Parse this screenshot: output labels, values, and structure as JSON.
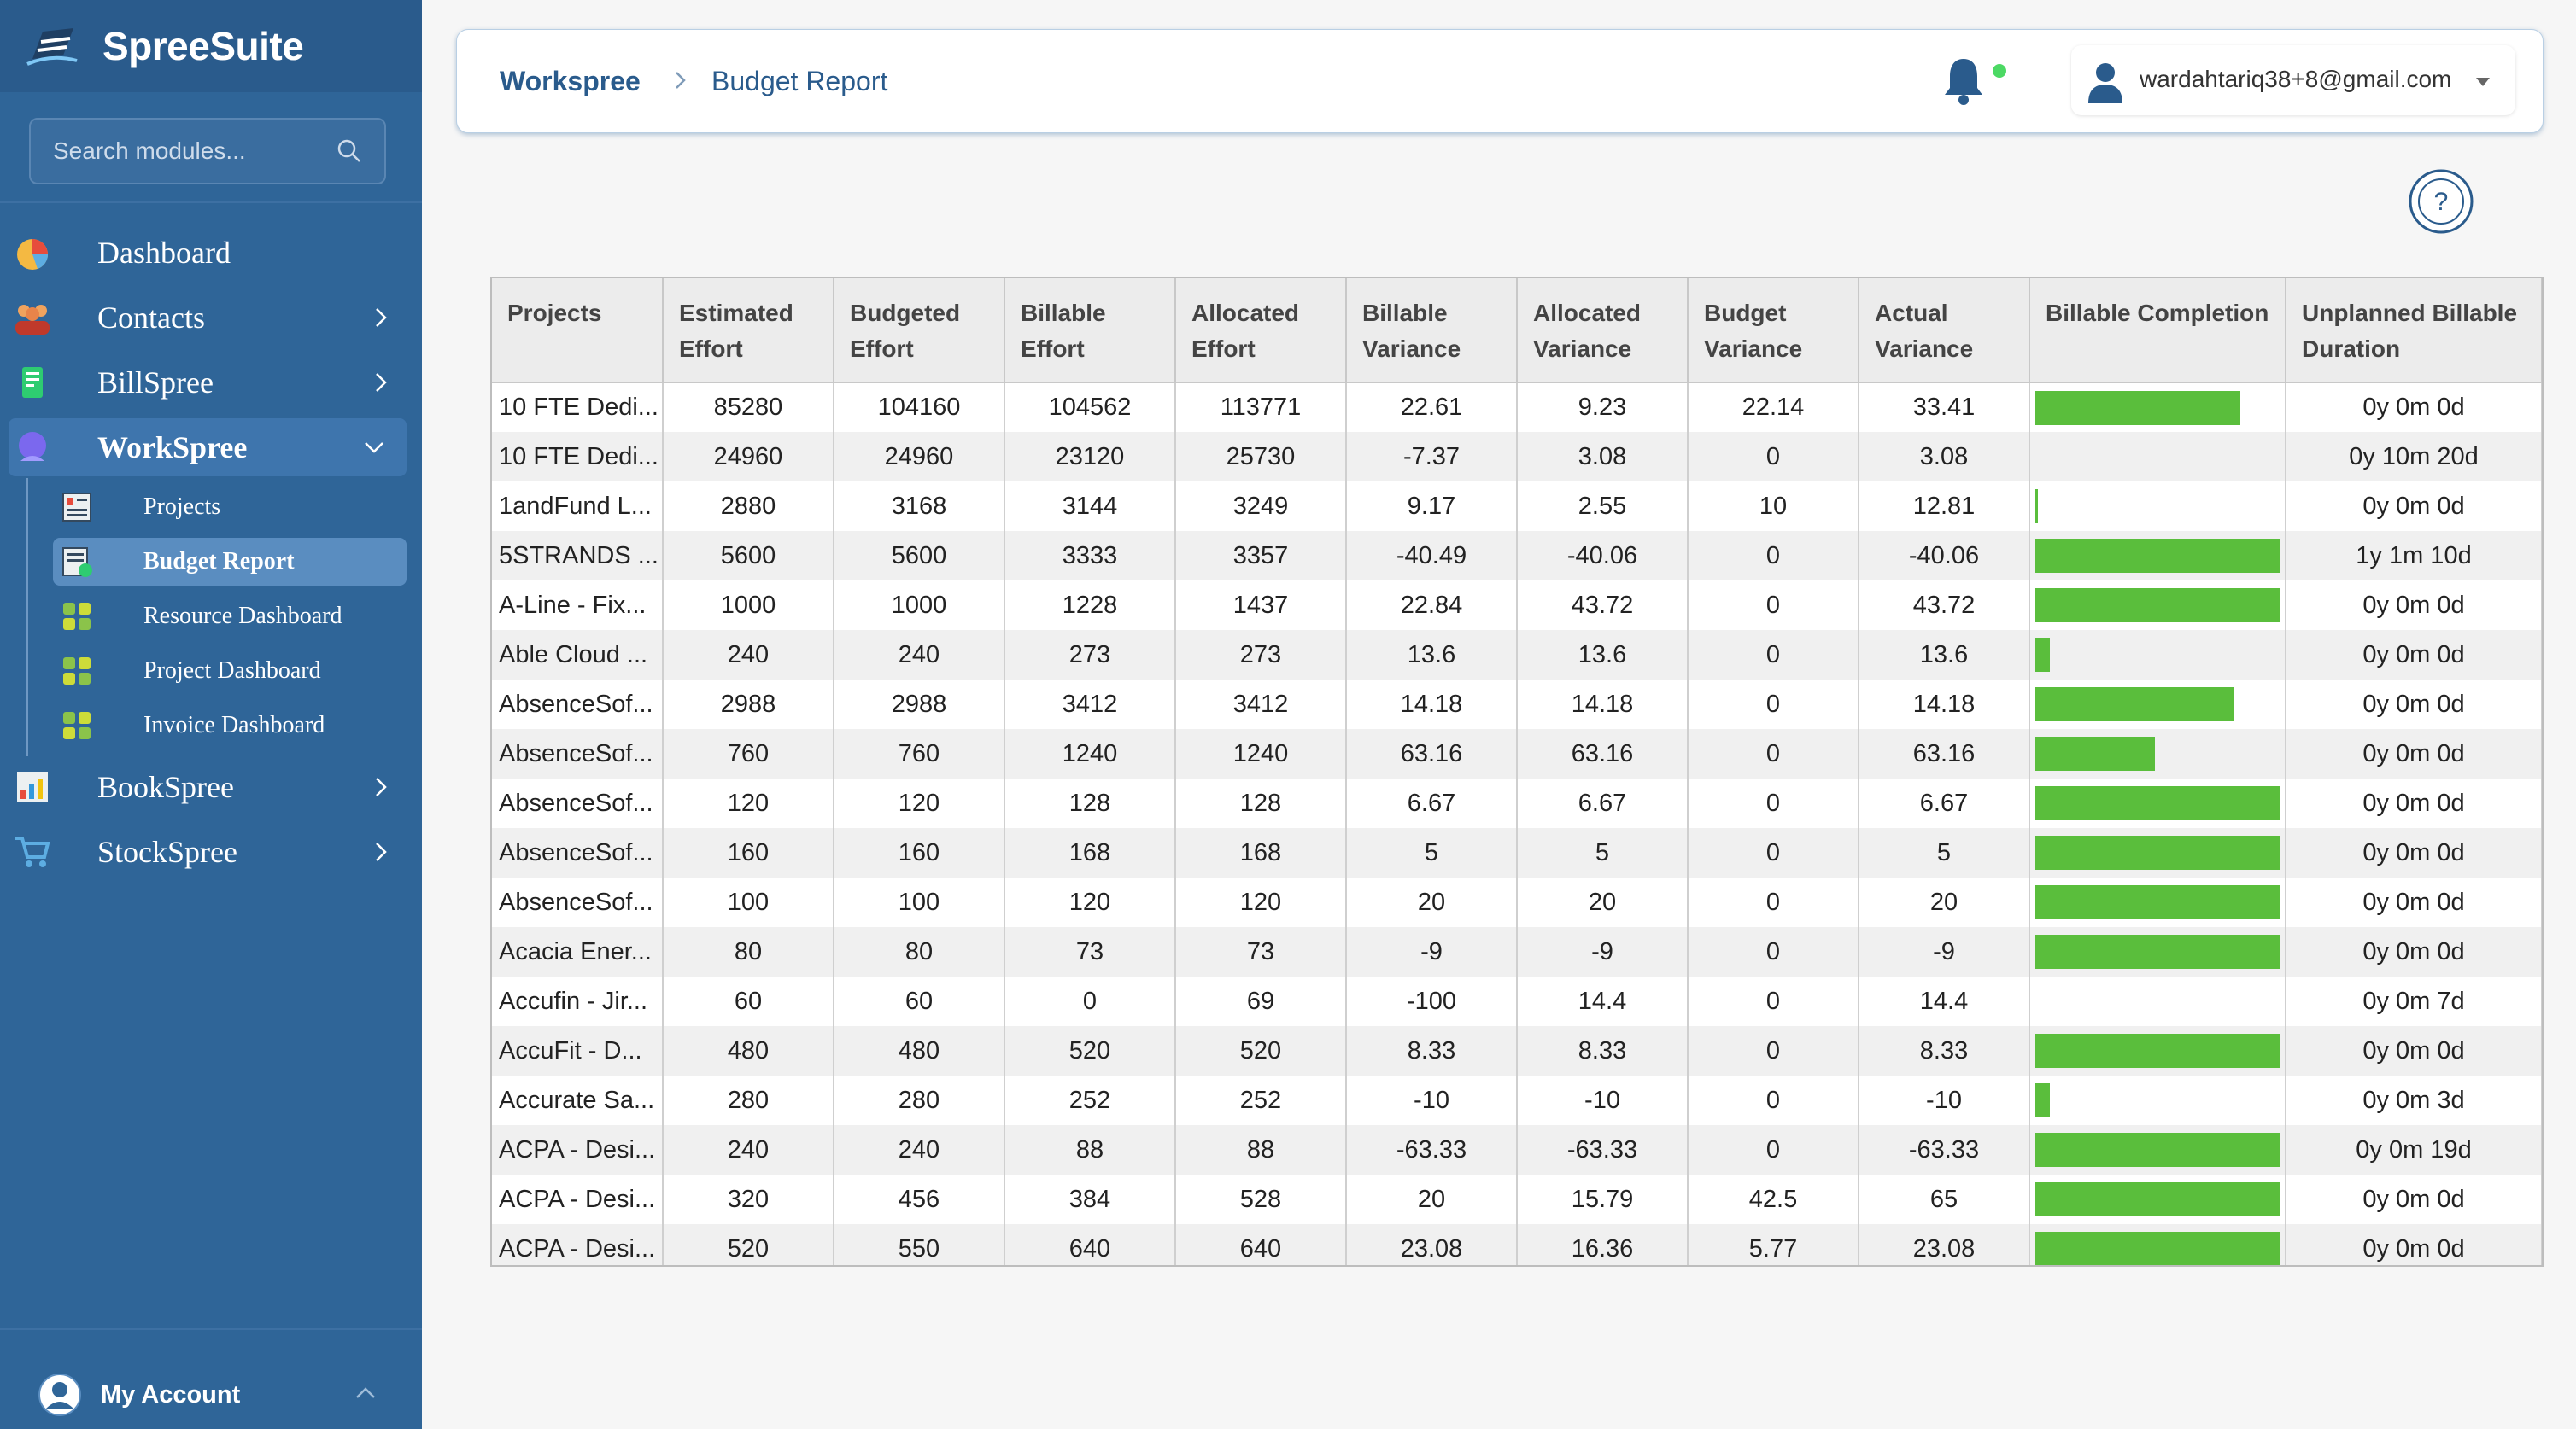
{
  "sidebar": {
    "brand": "SpreeSuite",
    "search_placeholder": "Search modules...",
    "items": [
      {
        "label": "Dashboard"
      },
      {
        "label": "Contacts"
      },
      {
        "label": "BillSpree"
      },
      {
        "label": "WorkSpree"
      },
      {
        "label": "BookSpree"
      },
      {
        "label": "StockSpree"
      }
    ],
    "subitems": [
      {
        "label": "Projects"
      },
      {
        "label": "Budget Report"
      },
      {
        "label": "Resource Dashboard"
      },
      {
        "label": "Project Dashboard"
      },
      {
        "label": "Invoice Dashboard"
      }
    ],
    "account_label": "My Account"
  },
  "header": {
    "crumb_root": "Workspree",
    "crumb_current": "Budget Report",
    "user_email": "wardahtariq38+8@gmail.com"
  },
  "colors": {
    "sidebar": "#2f6598",
    "bar": "#5abe3c",
    "notification_dot": "#4cd964"
  },
  "table": {
    "headers": [
      "Projects",
      "Estimated Effort",
      "Budgeted Effort",
      "Billable Effort",
      "Allocated Effort",
      "Billable Variance",
      "Allocated Variance",
      "Budget Variance",
      "Actual Variance",
      "Billable Completion",
      "Unplanned Billable Duration"
    ],
    "rows": [
      {
        "project": "10 FTE Dedi...",
        "estimated": "85280",
        "budgeted": "104160",
        "billable": "104562",
        "allocated": "113771",
        "billable_var": "22.61",
        "allocated_var": "9.23",
        "budget_var": "22.14",
        "actual_var": "33.41",
        "completion": 0.84,
        "unplanned": "0y 0m 0d"
      },
      {
        "project": "10 FTE Dedi...",
        "estimated": "24960",
        "budgeted": "24960",
        "billable": "23120",
        "allocated": "25730",
        "billable_var": "-7.37",
        "allocated_var": "3.08",
        "budget_var": "0",
        "actual_var": "3.08",
        "completion": 0,
        "unplanned": "0y 10m 20d"
      },
      {
        "project": "1andFund L...",
        "estimated": "2880",
        "budgeted": "3168",
        "billable": "3144",
        "allocated": "3249",
        "billable_var": "9.17",
        "allocated_var": "2.55",
        "budget_var": "10",
        "actual_var": "12.81",
        "completion": 0.01,
        "unplanned": "0y 0m 0d"
      },
      {
        "project": "5STRANDS ...",
        "estimated": "5600",
        "budgeted": "5600",
        "billable": "3333",
        "allocated": "3357",
        "billable_var": "-40.49",
        "allocated_var": "-40.06",
        "budget_var": "0",
        "actual_var": "-40.06",
        "completion": 1.0,
        "unplanned": "1y 1m 10d"
      },
      {
        "project": "A-Line - Fix...",
        "estimated": "1000",
        "budgeted": "1000",
        "billable": "1228",
        "allocated": "1437",
        "billable_var": "22.84",
        "allocated_var": "43.72",
        "budget_var": "0",
        "actual_var": "43.72",
        "completion": 1.0,
        "unplanned": "0y 0m 0d"
      },
      {
        "project": "Able Cloud ...",
        "estimated": "240",
        "budgeted": "240",
        "billable": "273",
        "allocated": "273",
        "billable_var": "13.6",
        "allocated_var": "13.6",
        "budget_var": "0",
        "actual_var": "13.6",
        "completion": 0.06,
        "unplanned": "0y 0m 0d"
      },
      {
        "project": "AbsenceSof...",
        "estimated": "2988",
        "budgeted": "2988",
        "billable": "3412",
        "allocated": "3412",
        "billable_var": "14.18",
        "allocated_var": "14.18",
        "budget_var": "0",
        "actual_var": "14.18",
        "completion": 0.81,
        "unplanned": "0y 0m 0d"
      },
      {
        "project": "AbsenceSof...",
        "estimated": "760",
        "budgeted": "760",
        "billable": "1240",
        "allocated": "1240",
        "billable_var": "63.16",
        "allocated_var": "63.16",
        "budget_var": "0",
        "actual_var": "63.16",
        "completion": 0.49,
        "unplanned": "0y 0m 0d"
      },
      {
        "project": "AbsenceSof...",
        "estimated": "120",
        "budgeted": "120",
        "billable": "128",
        "allocated": "128",
        "billable_var": "6.67",
        "allocated_var": "6.67",
        "budget_var": "0",
        "actual_var": "6.67",
        "completion": 1.0,
        "unplanned": "0y 0m 0d"
      },
      {
        "project": "AbsenceSof...",
        "estimated": "160",
        "budgeted": "160",
        "billable": "168",
        "allocated": "168",
        "billable_var": "5",
        "allocated_var": "5",
        "budget_var": "0",
        "actual_var": "5",
        "completion": 1.0,
        "unplanned": "0y 0m 0d"
      },
      {
        "project": "AbsenceSof...",
        "estimated": "100",
        "budgeted": "100",
        "billable": "120",
        "allocated": "120",
        "billable_var": "20",
        "allocated_var": "20",
        "budget_var": "0",
        "actual_var": "20",
        "completion": 1.0,
        "unplanned": "0y 0m 0d"
      },
      {
        "project": "Acacia Ener...",
        "estimated": "80",
        "budgeted": "80",
        "billable": "73",
        "allocated": "73",
        "billable_var": "-9",
        "allocated_var": "-9",
        "budget_var": "0",
        "actual_var": "-9",
        "completion": 1.0,
        "unplanned": "0y 0m 0d"
      },
      {
        "project": "Accufin - Jir...",
        "estimated": "60",
        "budgeted": "60",
        "billable": "0",
        "allocated": "69",
        "billable_var": "-100",
        "allocated_var": "14.4",
        "budget_var": "0",
        "actual_var": "14.4",
        "completion": 0,
        "unplanned": "0y 0m 7d"
      },
      {
        "project": "AccuFit - D...",
        "estimated": "480",
        "budgeted": "480",
        "billable": "520",
        "allocated": "520",
        "billable_var": "8.33",
        "allocated_var": "8.33",
        "budget_var": "0",
        "actual_var": "8.33",
        "completion": 1.0,
        "unplanned": "0y 0m 0d"
      },
      {
        "project": "Accurate Sa...",
        "estimated": "280",
        "budgeted": "280",
        "billable": "252",
        "allocated": "252",
        "billable_var": "-10",
        "allocated_var": "-10",
        "budget_var": "0",
        "actual_var": "-10",
        "completion": 0.06,
        "unplanned": "0y 0m 3d"
      },
      {
        "project": "ACPA - Desi...",
        "estimated": "240",
        "budgeted": "240",
        "billable": "88",
        "allocated": "88",
        "billable_var": "-63.33",
        "allocated_var": "-63.33",
        "budget_var": "0",
        "actual_var": "-63.33",
        "completion": 1.0,
        "unplanned": "0y 0m 19d"
      },
      {
        "project": "ACPA - Desi...",
        "estimated": "320",
        "budgeted": "456",
        "billable": "384",
        "allocated": "528",
        "billable_var": "20",
        "allocated_var": "15.79",
        "budget_var": "42.5",
        "actual_var": "65",
        "completion": 1.0,
        "unplanned": "0y 0m 0d"
      },
      {
        "project": "ACPA - Desi...",
        "estimated": "520",
        "budgeted": "550",
        "billable": "640",
        "allocated": "640",
        "billable_var": "23.08",
        "allocated_var": "16.36",
        "budget_var": "5.77",
        "actual_var": "23.08",
        "completion": 1.0,
        "unplanned": "0y 0m 0d"
      }
    ]
  }
}
